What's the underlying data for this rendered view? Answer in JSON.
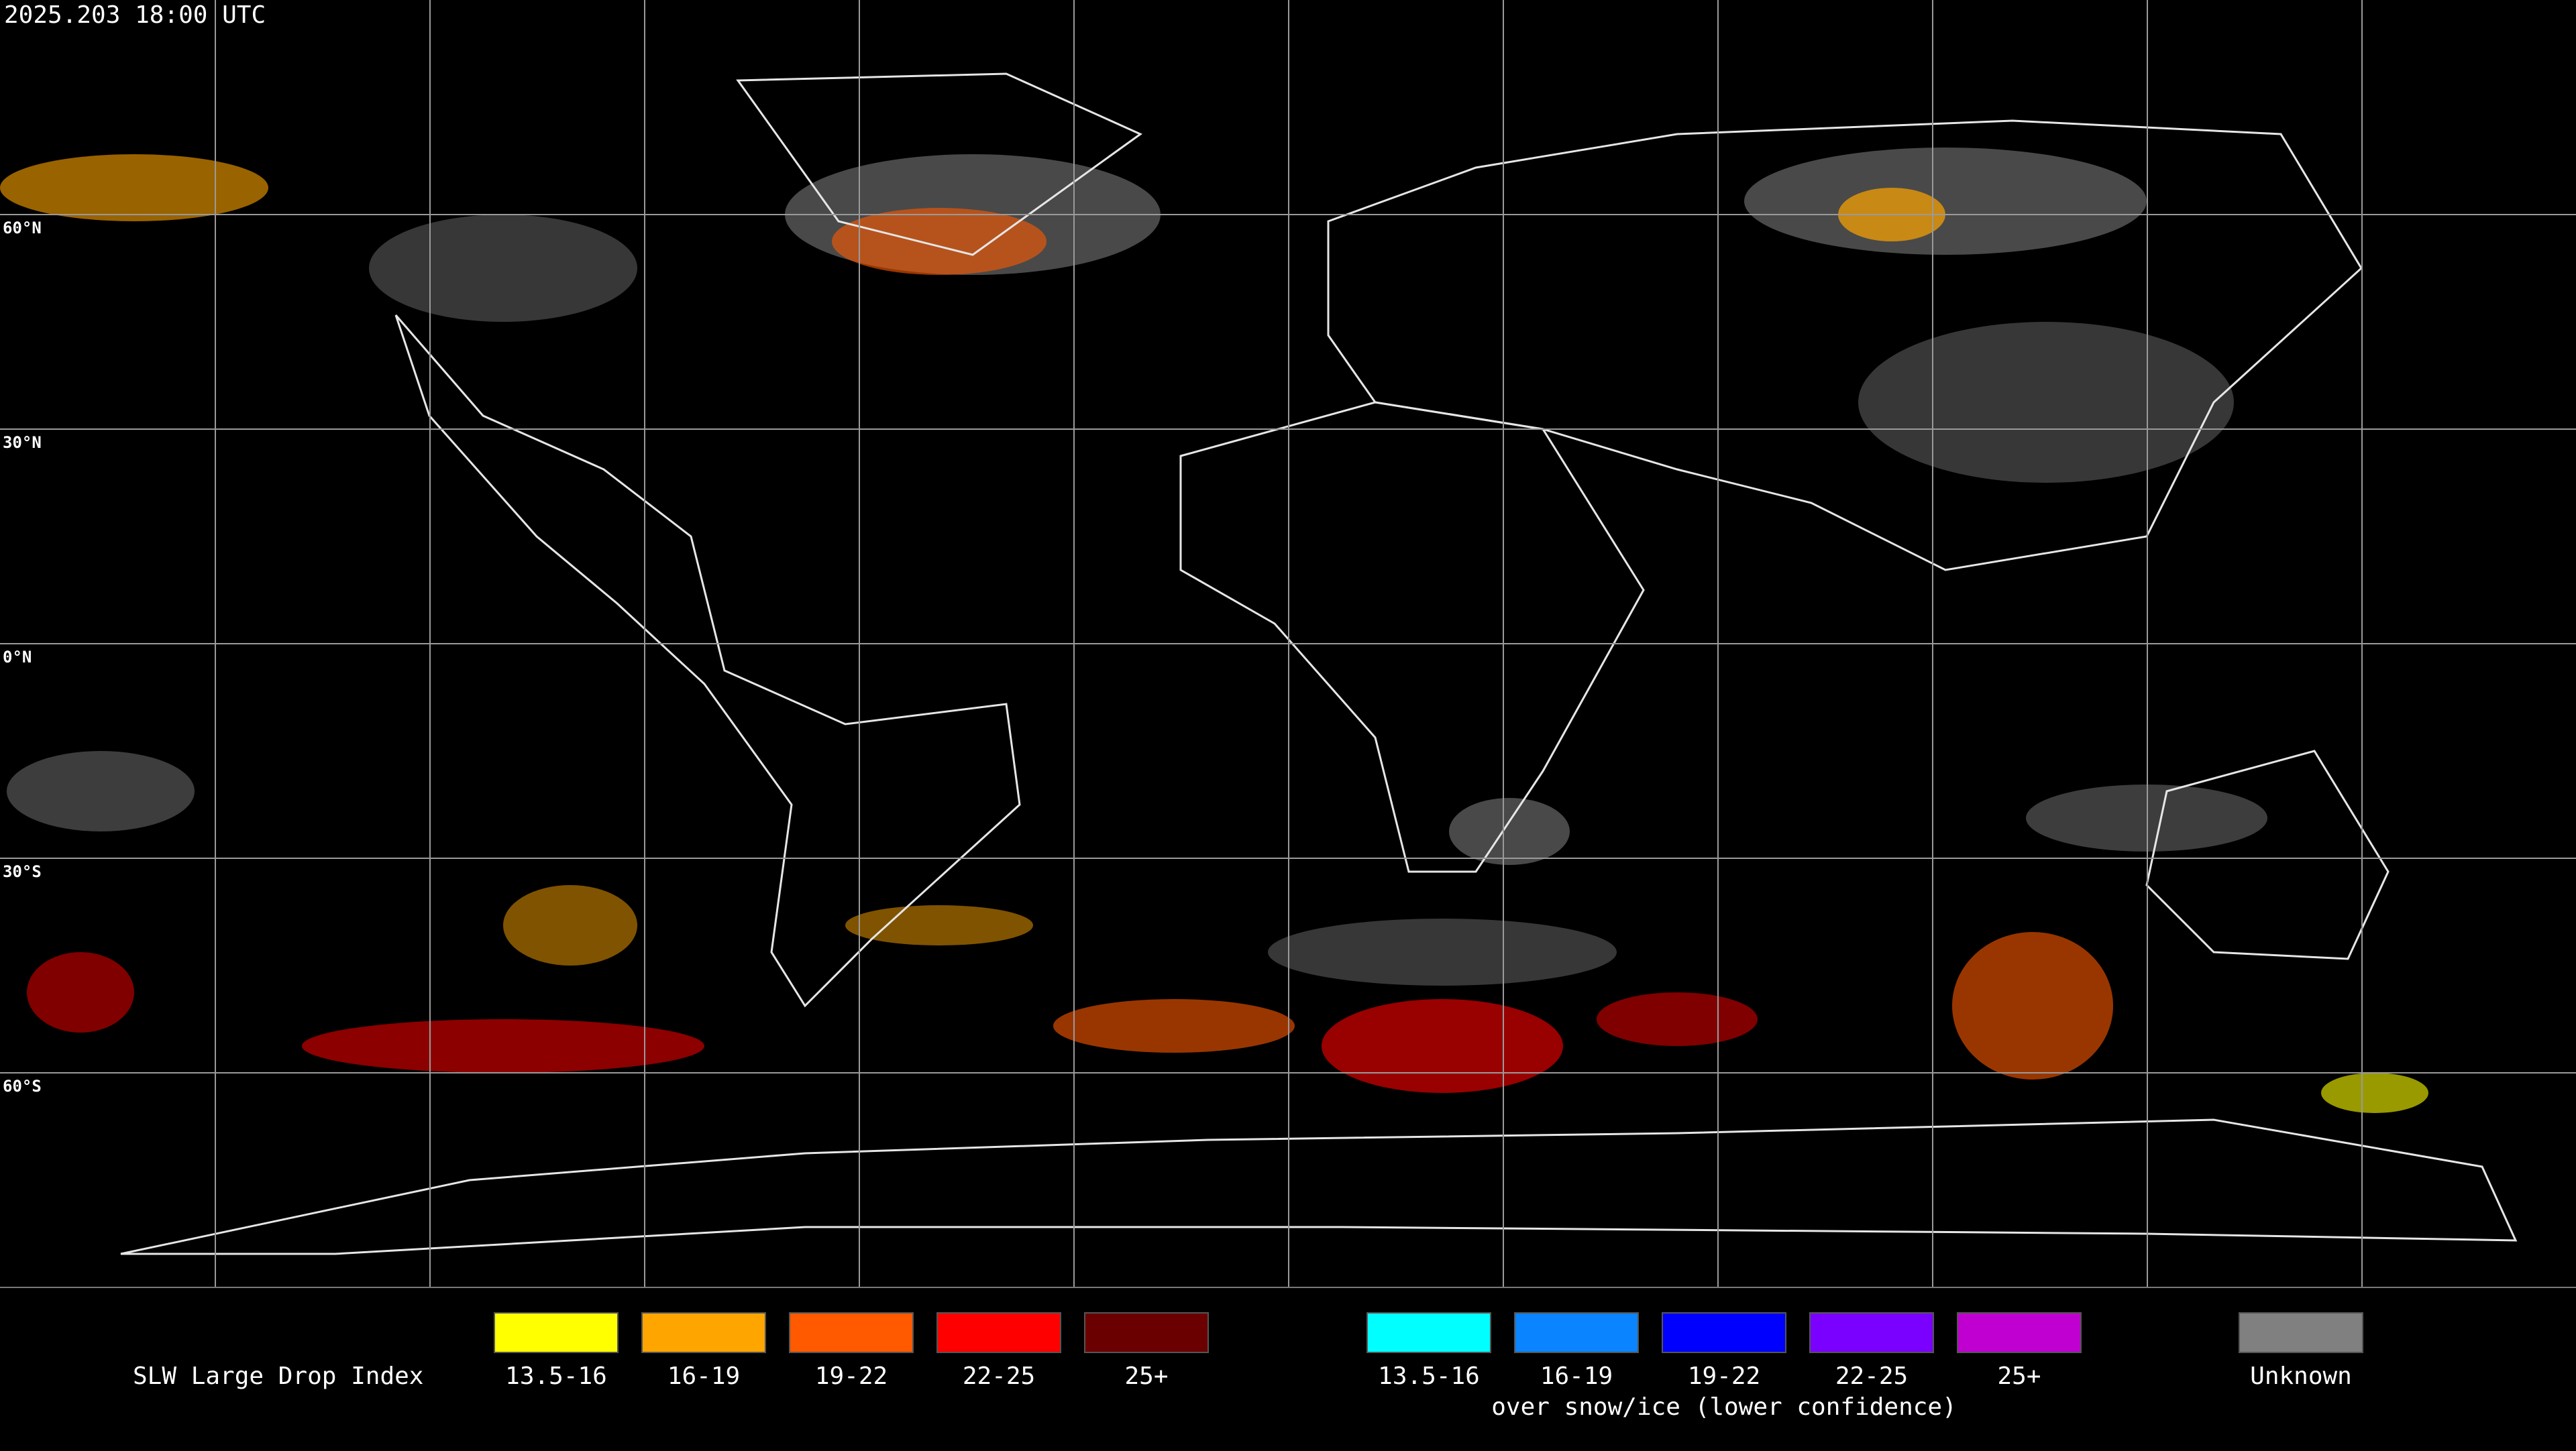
{
  "header": {
    "timestamp": "2025.203 18:00 UTC"
  },
  "map": {
    "lat_labels": [
      "60°N",
      "30°N",
      "0°N",
      "30°S",
      "60°S"
    ]
  },
  "legend": {
    "title": "SLW Large Drop Index",
    "groups": [
      {
        "items": [
          {
            "label": "13.5-16",
            "color": "#ffff00"
          },
          {
            "label": "16-19",
            "color": "#ffa500"
          },
          {
            "label": "19-22",
            "color": "#ff5a00"
          },
          {
            "label": "22-25",
            "color": "#ff0000"
          },
          {
            "label": "25+",
            "color": "#6b0000"
          }
        ]
      },
      {
        "items": [
          {
            "label": "13.5-16",
            "color": "#00ffff"
          },
          {
            "label": "16-19",
            "color": "#0a84ff"
          },
          {
            "label": "19-22",
            "color": "#0000ff"
          },
          {
            "label": "22-25",
            "color": "#7a00ff"
          },
          {
            "label": "25+",
            "color": "#c000d0"
          }
        ],
        "caption": "over snow/ice (lower confidence)"
      },
      {
        "items": [
          {
            "label": "Unknown",
            "color": "#808080"
          }
        ]
      }
    ]
  }
}
